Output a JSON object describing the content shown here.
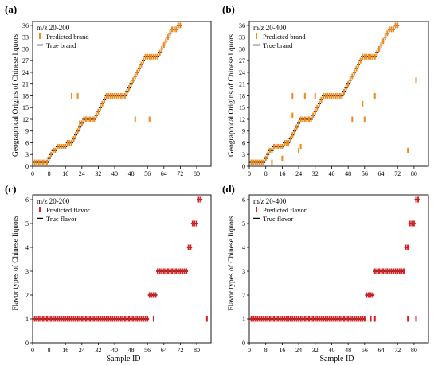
{
  "colors": {
    "brand": "#ee8a1a",
    "flavor": "#dd1e1e",
    "true_line": "#000000",
    "axis": "#000000"
  },
  "chart_data": [
    {
      "id": "a",
      "type": "scatter",
      "panel_label": "(a)",
      "annotation": "m/z 20-200",
      "xlabel": "",
      "ylabel": "Geographical Origins of Chinese liquors",
      "xlim": [
        0,
        87
      ],
      "ylim": [
        0,
        37
      ],
      "xticks": [
        0,
        8,
        16,
        24,
        32,
        40,
        48,
        56,
        64,
        72,
        80
      ],
      "yticks": [
        0,
        3,
        6,
        9,
        12,
        15,
        18,
        21,
        24,
        27,
        30,
        33,
        36
      ],
      "legend": [
        {
          "label": "Predicted brand",
          "kind": "predicted"
        },
        {
          "label": "True brand",
          "kind": "true"
        }
      ],
      "legend_position": "top-left",
      "true_values": [
        1,
        1,
        1,
        1,
        1,
        1,
        1,
        2,
        3,
        4,
        4,
        5,
        5,
        5,
        5,
        5,
        6,
        6,
        6,
        7,
        8,
        9,
        10,
        11,
        12,
        12,
        12,
        12,
        12,
        12,
        13,
        14,
        15,
        16,
        17,
        18,
        18,
        18,
        18,
        18,
        18,
        18,
        18,
        18,
        18,
        19,
        20,
        21,
        22,
        23,
        24,
        25,
        26,
        27,
        28,
        28,
        28,
        28,
        28,
        28,
        28,
        29,
        30,
        31,
        32,
        33,
        34,
        35,
        35,
        35,
        36,
        36
      ],
      "predicted_outliers": [
        {
          "x": 19,
          "y": 18
        },
        {
          "x": 22,
          "y": 18
        },
        {
          "x": 23,
          "y": 11
        },
        {
          "x": 50,
          "y": 12
        },
        {
          "x": 57,
          "y": 12
        }
      ]
    },
    {
      "id": "b",
      "type": "scatter",
      "panel_label": "(b)",
      "annotation": "m/z 20-400",
      "xlabel": "",
      "ylabel": "Geographical Origins of Chinese liquors",
      "xlim": [
        0,
        87
      ],
      "ylim": [
        0,
        37
      ],
      "xticks": [
        0,
        8,
        16,
        24,
        32,
        40,
        48,
        56,
        64,
        72,
        80
      ],
      "yticks": [
        0,
        3,
        6,
        9,
        12,
        15,
        18,
        21,
        24,
        27,
        30,
        33,
        36
      ],
      "legend": [
        {
          "label": "Predicted brand",
          "kind": "predicted"
        },
        {
          "label": "True brand",
          "kind": "true"
        }
      ],
      "legend_position": "top-left",
      "true_values": [
        1,
        1,
        1,
        1,
        1,
        1,
        1,
        2,
        3,
        4,
        4,
        5,
        5,
        5,
        5,
        5,
        6,
        6,
        6,
        7,
        8,
        9,
        10,
        11,
        12,
        12,
        12,
        12,
        12,
        12,
        13,
        14,
        15,
        16,
        17,
        18,
        18,
        18,
        18,
        18,
        18,
        18,
        18,
        18,
        18,
        19,
        20,
        21,
        22,
        23,
        24,
        25,
        26,
        27,
        28,
        28,
        28,
        28,
        28,
        28,
        28,
        29,
        30,
        31,
        32,
        33,
        34,
        35,
        35,
        35,
        36,
        36
      ],
      "predicted_outliers": [
        {
          "x": 11,
          "y": 1
        },
        {
          "x": 16,
          "y": 2
        },
        {
          "x": 21,
          "y": 18
        },
        {
          "x": 21,
          "y": 13
        },
        {
          "x": 24,
          "y": 4
        },
        {
          "x": 25,
          "y": 5
        },
        {
          "x": 27,
          "y": 18
        },
        {
          "x": 32,
          "y": 18
        },
        {
          "x": 50,
          "y": 12
        },
        {
          "x": 55,
          "y": 16
        },
        {
          "x": 56,
          "y": 12
        },
        {
          "x": 61,
          "y": 18
        },
        {
          "x": 77,
          "y": 4
        },
        {
          "x": 81,
          "y": 22
        }
      ]
    },
    {
      "id": "c",
      "type": "scatter",
      "panel_label": "(c)",
      "annotation": "m/z 20-200",
      "xlabel": "Sample ID",
      "ylabel": "Flavor types of Chinese liquors",
      "xlim": [
        0,
        87
      ],
      "ylim": [
        0,
        6.2
      ],
      "xticks": [
        0,
        8,
        16,
        24,
        32,
        40,
        48,
        56,
        64,
        72,
        80
      ],
      "yticks": [
        0,
        1,
        2,
        3,
        4,
        5,
        6
      ],
      "legend": [
        {
          "label": "Predicted flavor",
          "kind": "predicted"
        },
        {
          "label": "True flavor",
          "kind": "true"
        }
      ],
      "legend_position": "top-left",
      "true_values": [
        1,
        1,
        1,
        1,
        1,
        1,
        1,
        1,
        1,
        1,
        1,
        1,
        1,
        1,
        1,
        1,
        1,
        1,
        1,
        1,
        1,
        1,
        1,
        1,
        1,
        1,
        1,
        1,
        1,
        1,
        1,
        1,
        1,
        1,
        1,
        1,
        1,
        1,
        1,
        1,
        1,
        1,
        1,
        1,
        1,
        1,
        1,
        1,
        1,
        1,
        1,
        1,
        1,
        1,
        1,
        1,
        2,
        2,
        2,
        2,
        3,
        3,
        3,
        3,
        3,
        3,
        3,
        3,
        3,
        3,
        3,
        3,
        3,
        3,
        3,
        4,
        4,
        5,
        5,
        5,
        6,
        6
      ],
      "predicted_outliers": [
        {
          "x": 59,
          "y": 1
        },
        {
          "x": 85,
          "y": 1
        }
      ]
    },
    {
      "id": "d",
      "type": "scatter",
      "panel_label": "(d)",
      "annotation": "m/z 20-400",
      "xlabel": "Sample ID",
      "ylabel": "Flavor types of Chinese liquors",
      "xlim": [
        0,
        87
      ],
      "ylim": [
        0,
        6.2
      ],
      "xticks": [
        0,
        8,
        16,
        24,
        32,
        40,
        48,
        56,
        64,
        72,
        80
      ],
      "yticks": [
        0,
        1,
        2,
        3,
        4,
        5,
        6
      ],
      "legend": [
        {
          "label": "Predicted flavor",
          "kind": "predicted"
        },
        {
          "label": "True flavor",
          "kind": "true"
        }
      ],
      "legend_position": "top-left",
      "true_values": [
        1,
        1,
        1,
        1,
        1,
        1,
        1,
        1,
        1,
        1,
        1,
        1,
        1,
        1,
        1,
        1,
        1,
        1,
        1,
        1,
        1,
        1,
        1,
        1,
        1,
        1,
        1,
        1,
        1,
        1,
        1,
        1,
        1,
        1,
        1,
        1,
        1,
        1,
        1,
        1,
        1,
        1,
        1,
        1,
        1,
        1,
        1,
        1,
        1,
        1,
        1,
        1,
        1,
        1,
        1,
        1,
        2,
        2,
        2,
        2,
        3,
        3,
        3,
        3,
        3,
        3,
        3,
        3,
        3,
        3,
        3,
        3,
        3,
        3,
        3,
        4,
        4,
        5,
        5,
        5,
        6,
        6
      ],
      "predicted_outliers": [
        {
          "x": 59,
          "y": 1
        },
        {
          "x": 61,
          "y": 1
        },
        {
          "x": 77,
          "y": 1
        },
        {
          "x": 81,
          "y": 1
        }
      ]
    }
  ]
}
